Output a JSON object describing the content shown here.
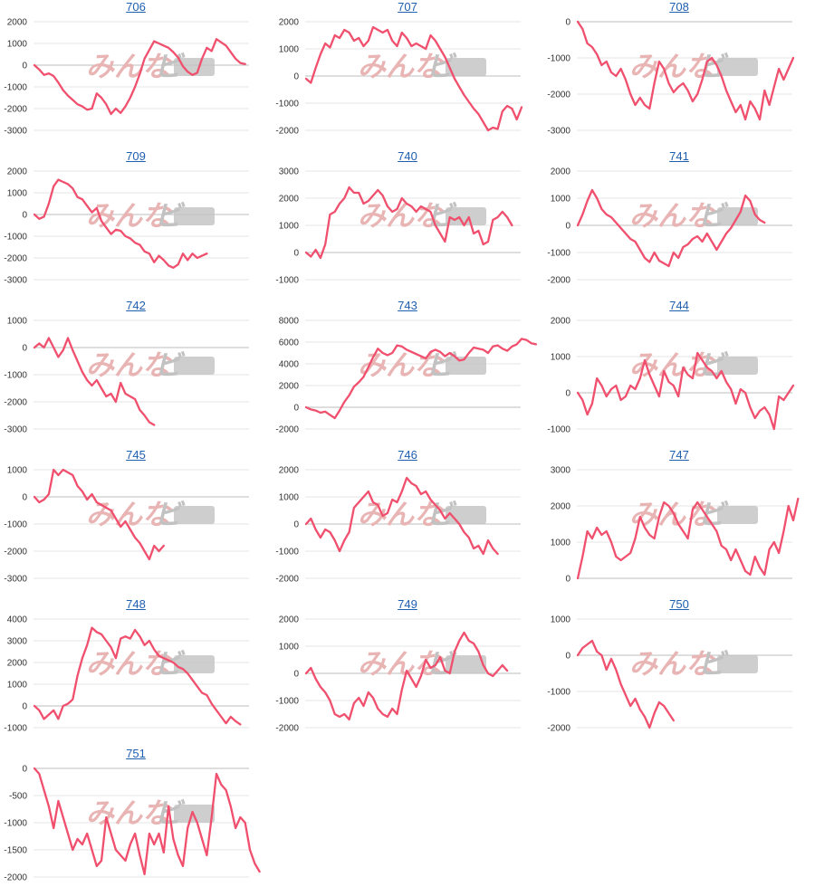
{
  "colors": {
    "line": "#f0506e",
    "grid": "#e4e4e4",
    "zero_line": "#bdbdbd",
    "title": "#1f5fb0",
    "watermark_primary": "#e8b4b4",
    "watermark_secondary": "#c2c2c2"
  },
  "watermark": {
    "primary": "みんな",
    "secondary": "ビ"
  },
  "chart_data": [
    {
      "type": "line",
      "title": "706",
      "yticks": [
        2000,
        1000,
        0,
        -1000,
        -2000,
        -3000
      ],
      "ylim": [
        -3000,
        2000
      ],
      "grid": true,
      "series": [
        {
          "values": [
            0,
            -200,
            -450,
            -380,
            -500,
            -800,
            -1150,
            -1400,
            -1600,
            -1800,
            -1900,
            -2050,
            -2000,
            -1300,
            -1500,
            -1800,
            -2250,
            -2000,
            -2200,
            -1900,
            -1500,
            -1000,
            -400,
            300,
            700,
            1100,
            1000,
            900,
            800,
            600,
            350,
            -50,
            -300,
            -450,
            -350,
            300,
            800,
            650,
            1200,
            1050,
            900,
            600,
            300,
            100,
            50
          ]
        }
      ]
    },
    {
      "type": "line",
      "title": "707",
      "yticks": [
        2000,
        1000,
        0,
        -1000,
        -2000
      ],
      "ylim": [
        -2000,
        2000
      ],
      "grid": true,
      "series": [
        {
          "values": [
            -100,
            -250,
            300,
            800,
            1200,
            1050,
            1500,
            1400,
            1700,
            1600,
            1300,
            1400,
            1100,
            1300,
            1800,
            1700,
            1600,
            1700,
            1300,
            1100,
            1600,
            1400,
            1100,
            1200,
            1100,
            1000,
            1500,
            1300,
            1000,
            700,
            300,
            -100,
            -400,
            -700,
            -950,
            -1200,
            -1400,
            -1700,
            -2000,
            -1900,
            -1950,
            -1300,
            -1100,
            -1200,
            -1600,
            -1150
          ]
        }
      ]
    },
    {
      "type": "line",
      "title": "708",
      "yticks": [
        0,
        -1000,
        -2000,
        -3000
      ],
      "ylim": [
        -3000,
        0
      ],
      "grid": true,
      "series": [
        {
          "values": [
            0,
            -200,
            -600,
            -700,
            -900,
            -1200,
            -1100,
            -1400,
            -1500,
            -1300,
            -1600,
            -2000,
            -2300,
            -2100,
            -2300,
            -2400,
            -1700,
            -1100,
            -1300,
            -1700,
            -1950,
            -1800,
            -1700,
            -1900,
            -2200,
            -2000,
            -1600,
            -1100,
            -1000,
            -1200,
            -1500,
            -1900,
            -2200,
            -2500,
            -2300,
            -2700,
            -2200,
            -2400,
            -2700,
            -1900,
            -2300,
            -1800,
            -1300,
            -1600,
            -1300,
            -1000
          ]
        }
      ]
    },
    {
      "type": "line",
      "title": "709",
      "yticks": [
        2000,
        1000,
        0,
        -1000,
        -2000,
        -3000
      ],
      "ylim": [
        -3000,
        2000
      ],
      "grid": true,
      "series": [
        {
          "values": [
            0,
            -200,
            -100,
            500,
            1300,
            1600,
            1500,
            1400,
            1200,
            800,
            700,
            400,
            100,
            300,
            -300,
            -600,
            -900,
            -700,
            -750,
            -1000,
            -1100,
            -1300,
            -1400,
            -1700,
            -1800,
            -2200,
            -1900,
            -2100,
            -2350,
            -2450,
            -2300,
            -1800,
            -2100,
            -1800,
            -2000,
            -1900,
            -1800
          ]
        }
      ]
    },
    {
      "type": "line",
      "title": "740",
      "yticks": [
        3000,
        2000,
        1000,
        0,
        -1000
      ],
      "ylim": [
        -1000,
        3000
      ],
      "grid": true,
      "series": [
        {
          "values": [
            0,
            -150,
            100,
            -200,
            300,
            1400,
            1500,
            1800,
            2000,
            2400,
            2200,
            2200,
            1800,
            1900,
            2100,
            2300,
            2100,
            1700,
            1500,
            1600,
            2000,
            1800,
            1700,
            1500,
            1700,
            1600,
            1500,
            1000,
            700,
            400,
            1300,
            1200,
            1300,
            1000,
            1300,
            700,
            800,
            300,
            400,
            1200,
            1300,
            1500,
            1300,
            1000
          ]
        }
      ]
    },
    {
      "type": "line",
      "title": "741",
      "yticks": [
        2000,
        1000,
        0,
        -1000,
        -2000
      ],
      "ylim": [
        -2000,
        2000
      ],
      "grid": true,
      "series": [
        {
          "values": [
            0,
            400,
            900,
            1300,
            1000,
            600,
            400,
            300,
            100,
            -100,
            -300,
            -500,
            -600,
            -900,
            -1200,
            -1350,
            -1000,
            -1300,
            -1400,
            -1500,
            -1000,
            -1200,
            -800,
            -700,
            -500,
            -400,
            -600,
            -300,
            -600,
            -900,
            -600,
            -300,
            -100,
            200,
            500,
            1100,
            900,
            400,
            200,
            100
          ]
        }
      ]
    },
    {
      "type": "line",
      "title": "742",
      "yticks": [
        1000,
        0,
        -1000,
        -2000,
        -3000
      ],
      "ylim": [
        -3000,
        1000
      ],
      "grid": true,
      "series": [
        {
          "values": [
            0,
            150,
            0,
            350,
            0,
            -350,
            -100,
            350,
            -100,
            -500,
            -900,
            -1200,
            -1400,
            -1200,
            -1500,
            -1800,
            -1700,
            -2000,
            -1300,
            -1700,
            -1800,
            -1900,
            -2300,
            -2500,
            -2750,
            -2850
          ]
        }
      ]
    },
    {
      "type": "line",
      "title": "743",
      "yticks": [
        8000,
        6000,
        4000,
        2000,
        0,
        -2000
      ],
      "ylim": [
        -2000,
        8000
      ],
      "grid": true,
      "series": [
        {
          "values": [
            0,
            -200,
            -300,
            -500,
            -400,
            -700,
            -1000,
            -300,
            500,
            1100,
            1900,
            2300,
            2800,
            3700,
            4600,
            5400,
            5000,
            4800,
            5000,
            5700,
            5600,
            5300,
            5100,
            4900,
            4700,
            4500,
            5100,
            5300,
            5100,
            4700,
            5000,
            4700,
            4300,
            4400,
            5000,
            5500,
            5400,
            5300,
            5000,
            5600,
            5700,
            5400,
            5200,
            5600,
            5800,
            6300,
            6200,
            5900,
            5800
          ]
        }
      ]
    },
    {
      "type": "line",
      "title": "744",
      "yticks": [
        2000,
        1000,
        0,
        -1000
      ],
      "ylim": [
        -1000,
        2000
      ],
      "grid": true,
      "series": [
        {
          "values": [
            0,
            -200,
            -600,
            -300,
            400,
            200,
            -100,
            100,
            200,
            -200,
            -100,
            200,
            100,
            400,
            900,
            500,
            200,
            -100,
            600,
            300,
            200,
            -100,
            700,
            500,
            400,
            1100,
            900,
            700,
            600,
            400,
            600,
            300,
            100,
            -300,
            100,
            0,
            -400,
            -700,
            -500,
            -400,
            -600,
            -1000,
            -100,
            -200,
            0,
            200
          ]
        }
      ]
    },
    {
      "type": "line",
      "title": "745",
      "yticks": [
        1000,
        0,
        -1000,
        -2000,
        -3000
      ],
      "ylim": [
        -3000,
        1000
      ],
      "grid": true,
      "series": [
        {
          "values": [
            0,
            -200,
            -100,
            100,
            1000,
            800,
            1000,
            900,
            800,
            400,
            200,
            -100,
            100,
            -200,
            -300,
            -400,
            -500,
            -800,
            -1100,
            -900,
            -1200,
            -1500,
            -1700,
            -2000,
            -2300,
            -1800,
            -2000,
            -1800
          ]
        }
      ]
    },
    {
      "type": "line",
      "title": "746",
      "yticks": [
        2000,
        1000,
        0,
        -1000,
        -2000
      ],
      "ylim": [
        -2000,
        2000
      ],
      "grid": true,
      "series": [
        {
          "values": [
            0,
            200,
            -200,
            -500,
            -200,
            -300,
            -600,
            -1000,
            -600,
            -300,
            600,
            800,
            1000,
            1200,
            800,
            700,
            300,
            400,
            900,
            800,
            1200,
            1700,
            1500,
            1400,
            1100,
            1200,
            900,
            700,
            500,
            200,
            400,
            200,
            0,
            -300,
            -500,
            -900,
            -800,
            -1100,
            -600,
            -900,
            -1100
          ]
        }
      ]
    },
    {
      "type": "line",
      "title": "747",
      "yticks": [
        3000,
        2000,
        1000,
        0
      ],
      "ylim": [
        0,
        3000
      ],
      "grid": true,
      "series": [
        {
          "values": [
            0,
            600,
            1300,
            1100,
            1400,
            1200,
            1300,
            1000,
            600,
            500,
            600,
            700,
            1100,
            1700,
            1400,
            1200,
            1100,
            1700,
            2100,
            2000,
            1800,
            1500,
            1300,
            1100,
            1900,
            2100,
            1900,
            1700,
            1500,
            1300,
            900,
            800,
            500,
            800,
            500,
            200,
            100,
            600,
            300,
            100,
            800,
            1000,
            700,
            1300,
            2000,
            1600,
            2200
          ]
        }
      ]
    },
    {
      "type": "line",
      "title": "748",
      "yticks": [
        4000,
        3000,
        2000,
        1000,
        0,
        -1000
      ],
      "ylim": [
        -1000,
        4000
      ],
      "grid": true,
      "series": [
        {
          "values": [
            0,
            -200,
            -600,
            -400,
            -200,
            -600,
            0,
            100,
            300,
            1400,
            2200,
            2800,
            3600,
            3400,
            3300,
            3000,
            2700,
            2200,
            3100,
            3200,
            3100,
            3500,
            3200,
            2800,
            3000,
            2600,
            2300,
            2200,
            2100,
            2000,
            1800,
            1700,
            1500,
            1200,
            900,
            600,
            500,
            100,
            -200,
            -500,
            -800,
            -500,
            -700,
            -850
          ]
        }
      ]
    },
    {
      "type": "line",
      "title": "749",
      "yticks": [
        2000,
        1000,
        0,
        -1000,
        -2000
      ],
      "ylim": [
        -2000,
        2000
      ],
      "grid": true,
      "series": [
        {
          "values": [
            0,
            200,
            -200,
            -500,
            -700,
            -1000,
            -1500,
            -1600,
            -1500,
            -1700,
            -1100,
            -900,
            -1200,
            -700,
            -900,
            -1300,
            -1500,
            -1600,
            -1300,
            -1500,
            -600,
            100,
            -200,
            -500,
            -100,
            500,
            200,
            300,
            600,
            100,
            0,
            800,
            1200,
            1500,
            1200,
            1100,
            800,
            300,
            0,
            -100,
            100,
            300,
            100
          ]
        }
      ]
    },
    {
      "type": "line",
      "title": "750",
      "yticks": [
        1000,
        0,
        -1000,
        -2000
      ],
      "ylim": [
        -2000,
        1000
      ],
      "grid": true,
      "series": [
        {
          "values": [
            0,
            200,
            300,
            400,
            100,
            0,
            -400,
            -100,
            -400,
            -800,
            -1100,
            -1400,
            -1200,
            -1500,
            -1700,
            -2000,
            -1600,
            -1300,
            -1400,
            -1600,
            -1800
          ]
        }
      ]
    },
    {
      "type": "line",
      "title": "751",
      "yticks": [
        0,
        -500,
        -1000,
        -1500,
        -2000
      ],
      "ylim": [
        -2000,
        0
      ],
      "grid": true,
      "series": [
        {
          "values": [
            0,
            -100,
            -400,
            -700,
            -1100,
            -600,
            -900,
            -1200,
            -1500,
            -1300,
            -1400,
            -1200,
            -1500,
            -1800,
            -1700,
            -900,
            -1200,
            -1500,
            -1600,
            -1700,
            -1400,
            -1200,
            -1600,
            -1950,
            -1200,
            -1400,
            -1200,
            -1550,
            -700,
            -1300,
            -1600,
            -1800,
            -1100,
            -800,
            -1000,
            -1300,
            -1600,
            -900,
            -100,
            -300,
            -400,
            -700,
            -1100,
            -900,
            -1000,
            -1500,
            -1750,
            -1900
          ]
        }
      ]
    }
  ]
}
